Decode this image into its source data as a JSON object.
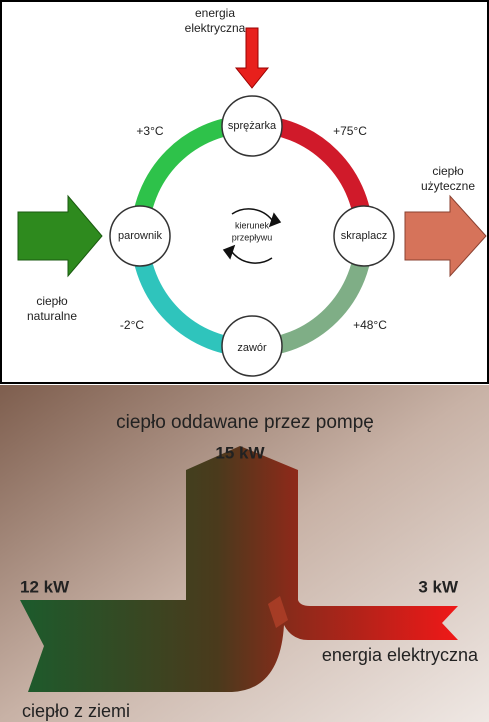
{
  "cycle": {
    "energy_in": [
      "energia",
      "elektryczna"
    ],
    "heat_in": [
      "ciepło",
      "naturalne"
    ],
    "heat_out": [
      "ciepło",
      "użyteczne"
    ],
    "direction": [
      "kierunek",
      "przepływu"
    ],
    "nodes": [
      "sprężarka",
      "parownik",
      "skraplacz",
      "zawór"
    ],
    "temps": [
      "+3°C",
      "+75°C",
      "-2°C",
      "+48°C"
    ]
  },
  "flow": {
    "title": "ciepło oddawane przez pompę",
    "output": "15 kW",
    "ground": "12 kW",
    "electric": "3 kW",
    "electric_label": "energia elektryczna",
    "ground_label": "ciepło z ziemi"
  }
}
